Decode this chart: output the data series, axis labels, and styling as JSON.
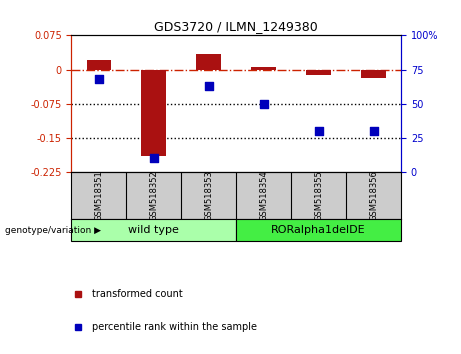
{
  "title": "GDS3720 / ILMN_1249380",
  "samples": [
    "GSM518351",
    "GSM518352",
    "GSM518353",
    "GSM518354",
    "GSM518355",
    "GSM518356"
  ],
  "transformed_count": [
    0.02,
    -0.19,
    0.035,
    0.005,
    -0.013,
    -0.018
  ],
  "percentile_rank": [
    68,
    10,
    63,
    50,
    30,
    30
  ],
  "ylim_left": [
    -0.225,
    0.075
  ],
  "ylim_right": [
    0,
    100
  ],
  "yticks_left": [
    0.075,
    0,
    -0.075,
    -0.15,
    -0.225
  ],
  "yticks_right": [
    100,
    75,
    50,
    25,
    0
  ],
  "ytick_labels_left": [
    "0.075",
    "0",
    "-0.075",
    "-0.15",
    "-0.225"
  ],
  "ytick_labels_right": [
    "100%",
    "75",
    "50",
    "25",
    "0"
  ],
  "hlines_dotted": [
    -0.075,
    -0.15
  ],
  "hline_zero": 0,
  "groups": [
    {
      "label": "wild type",
      "samples": [
        0,
        1,
        2
      ],
      "color": "#aaffaa"
    },
    {
      "label": "RORalpha1delDE",
      "samples": [
        3,
        4,
        5
      ],
      "color": "#44ee44"
    }
  ],
  "bar_color": "#aa1111",
  "dot_color": "#0000bb",
  "bar_width": 0.45,
  "dot_size": 35,
  "legend_items": [
    {
      "label": "transformed count",
      "color": "#aa1111",
      "marker": "s"
    },
    {
      "label": "percentile rank within the sample",
      "color": "#0000bb",
      "marker": "s"
    }
  ],
  "group_label": "genotype/variation",
  "background_color": "#ffffff",
  "plot_bg": "#ffffff",
  "tick_color_left": "#cc2200",
  "tick_color_right": "#0000cc",
  "sample_bg": "#cccccc",
  "title_fontsize": 9,
  "tick_fontsize": 7,
  "sample_fontsize": 6,
  "group_fontsize": 8
}
